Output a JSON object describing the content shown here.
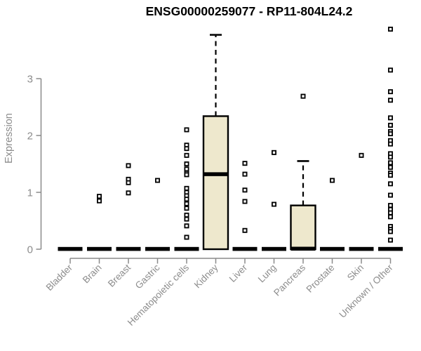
{
  "chart_data": {
    "type": "boxplot",
    "title": "ENSG00000259077 - RP11-804L24.2",
    "ylabel": "Expression",
    "ylim": [
      0,
      3.95
    ],
    "yticks": [
      0,
      1,
      2,
      3
    ],
    "grid": "off",
    "categories": [
      "Bladder",
      "Brain",
      "Breast",
      "Gastric",
      "Hematopoietic cells",
      "Kidney",
      "Liver",
      "Lung",
      "Pancreas",
      "Prostate",
      "Skin",
      "Unknown / Other"
    ],
    "boxes": [
      {
        "category": "Bladder",
        "q1": 0,
        "median": 0,
        "q3": 0,
        "whisker_high": 0
      },
      {
        "category": "Brain",
        "q1": 0,
        "median": 0,
        "q3": 0,
        "whisker_high": 0
      },
      {
        "category": "Breast",
        "q1": 0,
        "median": 0,
        "q3": 0,
        "whisker_high": 0
      },
      {
        "category": "Gastric",
        "q1": 0,
        "median": 0,
        "q3": 0,
        "whisker_high": 0
      },
      {
        "category": "Hematopoietic cells",
        "q1": 0,
        "median": 0,
        "q3": 0,
        "whisker_high": 0
      },
      {
        "category": "Kidney",
        "q1": 0,
        "median": 1.32,
        "q3": 2.34,
        "whisker_high": 3.77
      },
      {
        "category": "Liver",
        "q1": 0,
        "median": 0,
        "q3": 0,
        "whisker_high": 0
      },
      {
        "category": "Lung",
        "q1": 0,
        "median": 0,
        "q3": 0,
        "whisker_high": 0
      },
      {
        "category": "Pancreas",
        "q1": 0,
        "median": 0,
        "q3": 0.77,
        "whisker_high": 1.55
      },
      {
        "category": "Prostate",
        "q1": 0,
        "median": 0,
        "q3": 0,
        "whisker_high": 0
      },
      {
        "category": "Skin",
        "q1": 0,
        "median": 0,
        "q3": 0,
        "whisker_high": 0
      },
      {
        "category": "Unknown / Other",
        "q1": 0,
        "median": 0,
        "q3": 0,
        "whisker_high": 0
      }
    ],
    "points_by_category": [
      [],
      [
        0.93,
        0.85
      ],
      [
        1.47,
        1.23,
        1.17,
        0.99
      ],
      [
        1.21
      ],
      [
        2.1,
        1.83,
        1.77,
        1.65,
        1.5,
        1.41,
        1.34,
        1.31,
        1.07,
        1.0,
        0.94,
        0.88,
        0.8,
        0.72,
        0.6,
        0.53,
        0.41,
        0.21
      ],
      [],
      [
        1.51,
        1.32,
        1.04,
        0.84,
        0.33
      ],
      [
        1.7,
        0.79
      ],
      [
        2.69
      ],
      [
        1.21
      ],
      [
        1.65
      ],
      [
        3.87,
        3.15,
        2.77,
        2.62,
        2.31,
        2.18,
        2.07,
        2.03,
        1.91,
        1.85,
        1.68,
        1.62,
        1.52,
        1.44,
        1.34,
        1.3,
        1.15,
        0.95,
        0.77,
        0.7,
        0.64,
        0.57,
        0.4,
        0.35,
        0.31,
        0.16
      ]
    ]
  },
  "colors": {
    "title": "#000000",
    "axis": "#8a8a8a",
    "tick_label": "#8c8c8c",
    "box_fill": "#EEE8CD",
    "box_border": "#000000",
    "point": "#000000"
  }
}
